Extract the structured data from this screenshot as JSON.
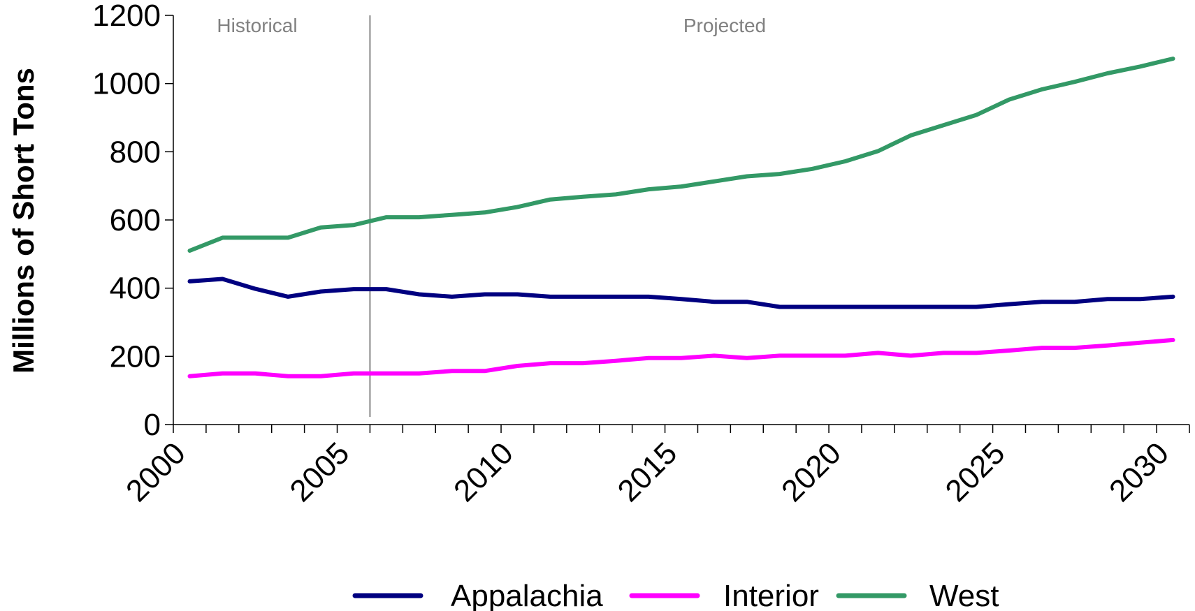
{
  "chart_data": {
    "type": "line",
    "title": "",
    "xlabel": "",
    "ylabel": "Millions of Short Tons",
    "xlim": [
      2000,
      2031
    ],
    "ylim": [
      0,
      1200
    ],
    "y_ticks": [
      0,
      200,
      400,
      600,
      800,
      1000,
      1200
    ],
    "x_ticks": [
      2000,
      2005,
      2010,
      2015,
      2020,
      2025,
      2030
    ],
    "grid": false,
    "legend_position": "bottom",
    "divider_x": 2006,
    "region_labels": [
      "Historical",
      "Projected"
    ],
    "x": [
      2000.5,
      2001.5,
      2002.5,
      2003.5,
      2004.5,
      2005.5,
      2006.5,
      2007.5,
      2008.5,
      2009.5,
      2010.5,
      2011.5,
      2012.5,
      2013.5,
      2014.5,
      2015.5,
      2016.5,
      2017.5,
      2018.5,
      2019.5,
      2020.5,
      2021.5,
      2022.5,
      2023.5,
      2024.5,
      2025.5,
      2026.5,
      2027.5,
      2028.5,
      2029.5,
      2030.5
    ],
    "series": [
      {
        "name": "Appalachia",
        "color": "#000080",
        "values": [
          420,
          427,
          398,
          375,
          390,
          397,
          397,
          382,
          375,
          382,
          382,
          375,
          375,
          375,
          375,
          368,
          360,
          360,
          345,
          345,
          345,
          345,
          345,
          345,
          345,
          353,
          360,
          360,
          368,
          368,
          375
        ]
      },
      {
        "name": "Interior",
        "color": "#ff00ff",
        "values": [
          142,
          150,
          150,
          142,
          142,
          150,
          150,
          150,
          157,
          157,
          172,
          180,
          180,
          187,
          195,
          195,
          202,
          195,
          202,
          202,
          202,
          210,
          202,
          210,
          210,
          217,
          225,
          225,
          232,
          240,
          248
        ]
      },
      {
        "name": "West",
        "color": "#339966",
        "values": [
          510,
          548,
          548,
          548,
          578,
          585,
          608,
          608,
          615,
          622,
          638,
          660,
          668,
          675,
          690,
          698,
          713,
          728,
          735,
          750,
          772,
          802,
          848,
          878,
          908,
          953,
          983,
          1005,
          1030,
          1050,
          1073
        ]
      }
    ]
  }
}
